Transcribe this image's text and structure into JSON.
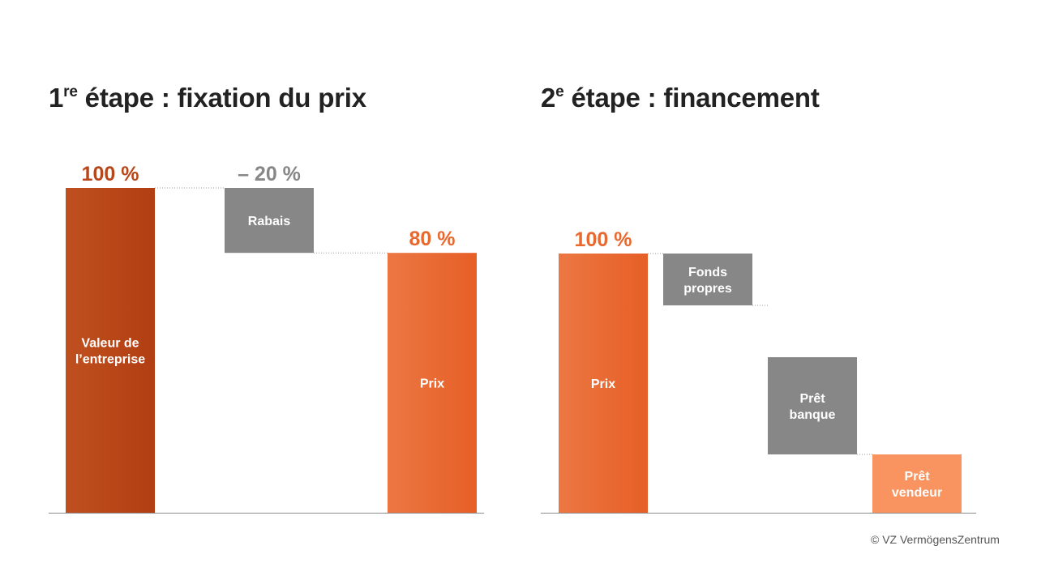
{
  "charts": [
    {
      "title_prefix": "1",
      "title_sup": "re",
      "title_rest": " étape : fixation du prix"
    },
    {
      "title_prefix": "2",
      "title_sup": "e",
      "title_rest": " étape : financement"
    }
  ],
  "chart_data": [
    {
      "type": "bar",
      "subtype": "waterfall",
      "ylim": [
        0,
        100
      ],
      "steps": [
        {
          "label_lines": [
            "Valeur de",
            "l’entreprise"
          ],
          "value_label": "100 %",
          "start": 0,
          "end": 100,
          "color": "#c0501f",
          "color2": "#b13e12"
        },
        {
          "label_lines": [
            "Rabais"
          ],
          "value_label": "– 20 %",
          "start": 80,
          "end": 100,
          "color": "#878787",
          "color2": "#878787"
        },
        {
          "label_lines": [
            "Prix"
          ],
          "value_label": "80 %",
          "start": 0,
          "end": 80,
          "color": "#ec7743",
          "color2": "#e65f26"
        }
      ],
      "value_label_colors": [
        "#b7461a",
        "#878787",
        "#e8692f"
      ]
    },
    {
      "type": "bar",
      "subtype": "waterfall",
      "ylim": [
        0,
        100
      ],
      "steps": [
        {
          "label_lines": [
            "Prix"
          ],
          "value_label": "100 %",
          "start": 0,
          "end": 100,
          "color": "#ec7743",
          "color2": "#e65f26"
        },
        {
          "label_lines": [
            "Fonds",
            "propres"
          ],
          "value_label": "",
          "start": 80,
          "end": 100,
          "color": "#878787",
          "color2": "#878787"
        },
        {
          "label_lines": [
            "Prêt",
            "banque"
          ],
          "value_label": "",
          "start": 22.5,
          "end": 60,
          "color": "#878787",
          "color2": "#878787"
        },
        {
          "label_lines": [
            "Prêt",
            "vendeur"
          ],
          "value_label": "",
          "start": 0,
          "end": 22.5,
          "color": "#f99461",
          "color2": "#f99461"
        }
      ],
      "connector_levels": [
        80,
        60,
        22.5
      ],
      "value_label_colors": [
        "#e8692f",
        "",
        "",
        ""
      ]
    }
  ],
  "copyright": "© VZ VermögensZentrum"
}
